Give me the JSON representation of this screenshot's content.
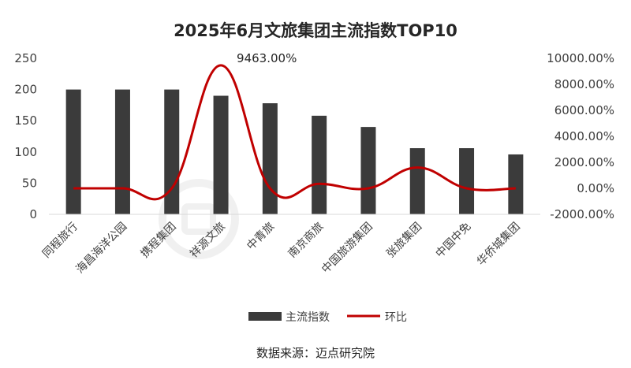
{
  "chart_data": {
    "type": "bar",
    "title": "2025年6月文旅集团主流指数TOP10",
    "categories": [
      "同程旅行",
      "海昌海洋公园",
      "携程集团",
      "祥源文旅",
      "中青旅",
      "南京商旅",
      "中国旅游集团",
      "张旅集团",
      "中国中免",
      "华侨城集团"
    ],
    "series": [
      {
        "name": "主流指数",
        "type": "bar",
        "axis": "left",
        "color": "#3b3b3b",
        "values": [
          200,
          200,
          200,
          190,
          178,
          158,
          140,
          106,
          106,
          96
        ]
      },
      {
        "name": "环比",
        "type": "line",
        "axis": "right",
        "color": "#c00000",
        "values": [
          0,
          0,
          0,
          9463,
          0,
          350,
          0,
          1600,
          0,
          0
        ]
      }
    ],
    "left_axis": {
      "ylim": [
        0,
        250
      ],
      "ticks": [
        "0",
        "50",
        "100",
        "150",
        "200",
        "250"
      ]
    },
    "right_axis": {
      "ylim": [
        -2000,
        10000
      ],
      "ticks": [
        "-2000.00%",
        "0.00%",
        "2000.00%",
        "4000.00%",
        "6000.00%",
        "8000.00%",
        "10000.00%"
      ]
    },
    "annotations": [
      {
        "category": "祥源文旅",
        "text": "9463.00%"
      }
    ],
    "legend": {
      "placement": "bottom",
      "items": [
        "主流指数",
        "环比"
      ]
    },
    "source": "数据来源：迈点研究院",
    "grid": false
  }
}
